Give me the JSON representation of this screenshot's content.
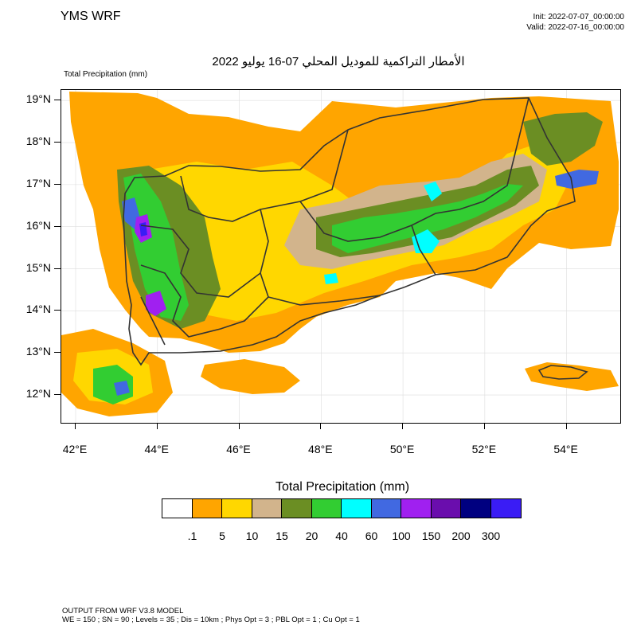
{
  "header": {
    "brand": "YMS WRF",
    "init": "Init: 2022-07-07_00:00:00",
    "valid": "Valid: 2022-07-16_00:00:00",
    "title": "الأمطار التراكمية للموديل المحلي 07-16 يوليو 2022",
    "field_label": "Total Precipitation   (mm)"
  },
  "map": {
    "lat_labels": [
      "19°N",
      "18°N",
      "17°N",
      "16°N",
      "15°N",
      "14°N",
      "13°N",
      "12°N"
    ],
    "lon_labels": [
      "42°E",
      "44°E",
      "46°E",
      "48°E",
      "50°E",
      "52°E",
      "54°E"
    ],
    "extent": {
      "lon_min": 41.65,
      "lon_max": 55.35,
      "lat_min": 11.3,
      "lat_max": 19.25
    },
    "border_color": "#333333",
    "grid_color": "#dddddd"
  },
  "legend": {
    "title": "Total Precipitation  (mm)",
    "colors": [
      "#ffffff",
      "#ffa500",
      "#ffd700",
      "#d2b48c",
      "#6b8e23",
      "#32cd32",
      "#00ffff",
      "#4169e1",
      "#a020f0",
      "#6a0dad",
      "#000080",
      "#3a1cf5"
    ],
    "levels": [
      ".1",
      "5",
      "10",
      "15",
      "20",
      "40",
      "60",
      "100",
      "150",
      "200",
      "300"
    ]
  },
  "footer": {
    "line1": "OUTPUT FROM WRF V3.8 MODEL",
    "line2": "WE = 150 ; SN = 90 ; Levels = 35 ; Dis = 10km ; Phys Opt = 3 ; PBL Opt = 1 ; Cu Opt = 1"
  }
}
